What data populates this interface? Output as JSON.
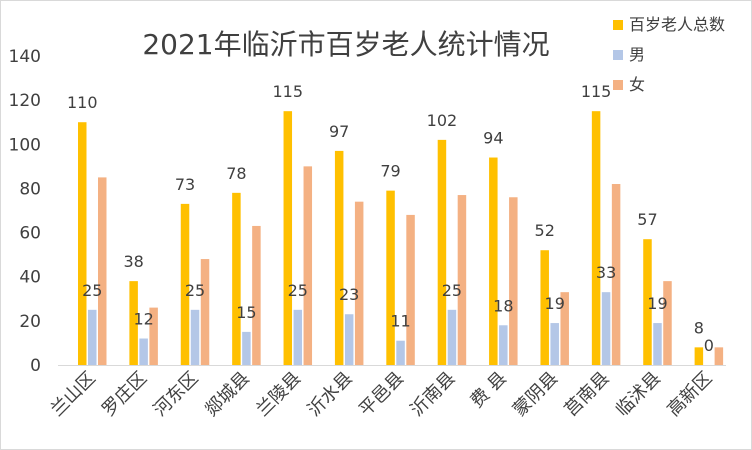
{
  "chart_data": {
    "type": "bar",
    "title": "2021年临沂市百岁老人统计情况",
    "xlabel": "",
    "ylabel": "",
    "ylim": [
      0,
      140
    ],
    "yticks": [
      0,
      20,
      40,
      60,
      80,
      100,
      120,
      140
    ],
    "grid": false,
    "legend_position": "top-right",
    "categories": [
      "兰山区",
      "罗庄区",
      "河东区",
      "郯城县",
      "兰陵县",
      "沂水县",
      "平邑县",
      "沂南县",
      "费 县",
      "蒙阴县",
      "莒南县",
      "临沭县",
      "高新区"
    ],
    "series": [
      {
        "name": "百岁老人总数",
        "color": "#FFC000",
        "values": [
          110,
          38,
          73,
          78,
          115,
          97,
          79,
          102,
          94,
          52,
          115,
          57,
          8
        ],
        "show_labels": true
      },
      {
        "name": "男",
        "color": "#B4C7E7",
        "values": [
          25,
          12,
          25,
          15,
          25,
          23,
          11,
          25,
          18,
          19,
          33,
          19,
          0
        ],
        "show_labels": true
      },
      {
        "name": "女",
        "color": "#F4B183",
        "values": [
          85,
          26,
          48,
          63,
          90,
          74,
          68,
          77,
          76,
          33,
          82,
          38,
          8
        ],
        "show_labels": false
      }
    ]
  }
}
